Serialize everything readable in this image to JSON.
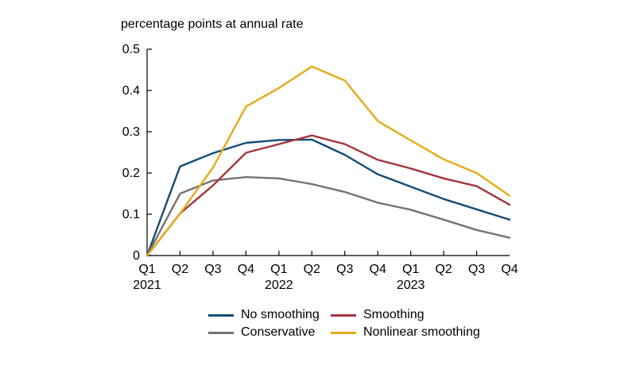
{
  "chart_data": {
    "type": "line",
    "ylabel": "percentage points at annual rate",
    "categories": [
      "Q1",
      "Q2",
      "Q3",
      "Q4",
      "Q1",
      "Q2",
      "Q3",
      "Q4",
      "Q1",
      "Q2",
      "Q3",
      "Q4"
    ],
    "year_labels": [
      "2021",
      "2022",
      "2023"
    ],
    "ylim": [
      0,
      0.5
    ],
    "yticks": [
      "0",
      "0.1",
      "0.2",
      "0.3",
      "0.4",
      "0.5"
    ],
    "series": [
      {
        "name": "No smoothing",
        "color": "#114d76",
        "values": [
          0,
          0.216,
          0.248,
          0.273,
          0.28,
          0.281,
          0.244,
          0.197,
          0.167,
          0.137,
          0.112,
          0.087
        ]
      },
      {
        "name": "Conservative",
        "color": "#737373",
        "values": [
          0,
          0.15,
          0.182,
          0.19,
          0.187,
          0.173,
          0.154,
          0.128,
          0.111,
          0.087,
          0.062,
          0.043
        ]
      },
      {
        "name": "Smoothing",
        "color": "#a4343c",
        "values": [
          0,
          0.102,
          0.17,
          0.249,
          0.27,
          0.291,
          0.27,
          0.232,
          0.211,
          0.187,
          0.168,
          0.123
        ]
      },
      {
        "name": "Nonlinear smoothing",
        "color": "#e7a917",
        "values": [
          0,
          0.102,
          0.213,
          0.361,
          0.406,
          0.458,
          0.424,
          0.326,
          0.279,
          0.233,
          0.2,
          0.145
        ]
      }
    ]
  }
}
